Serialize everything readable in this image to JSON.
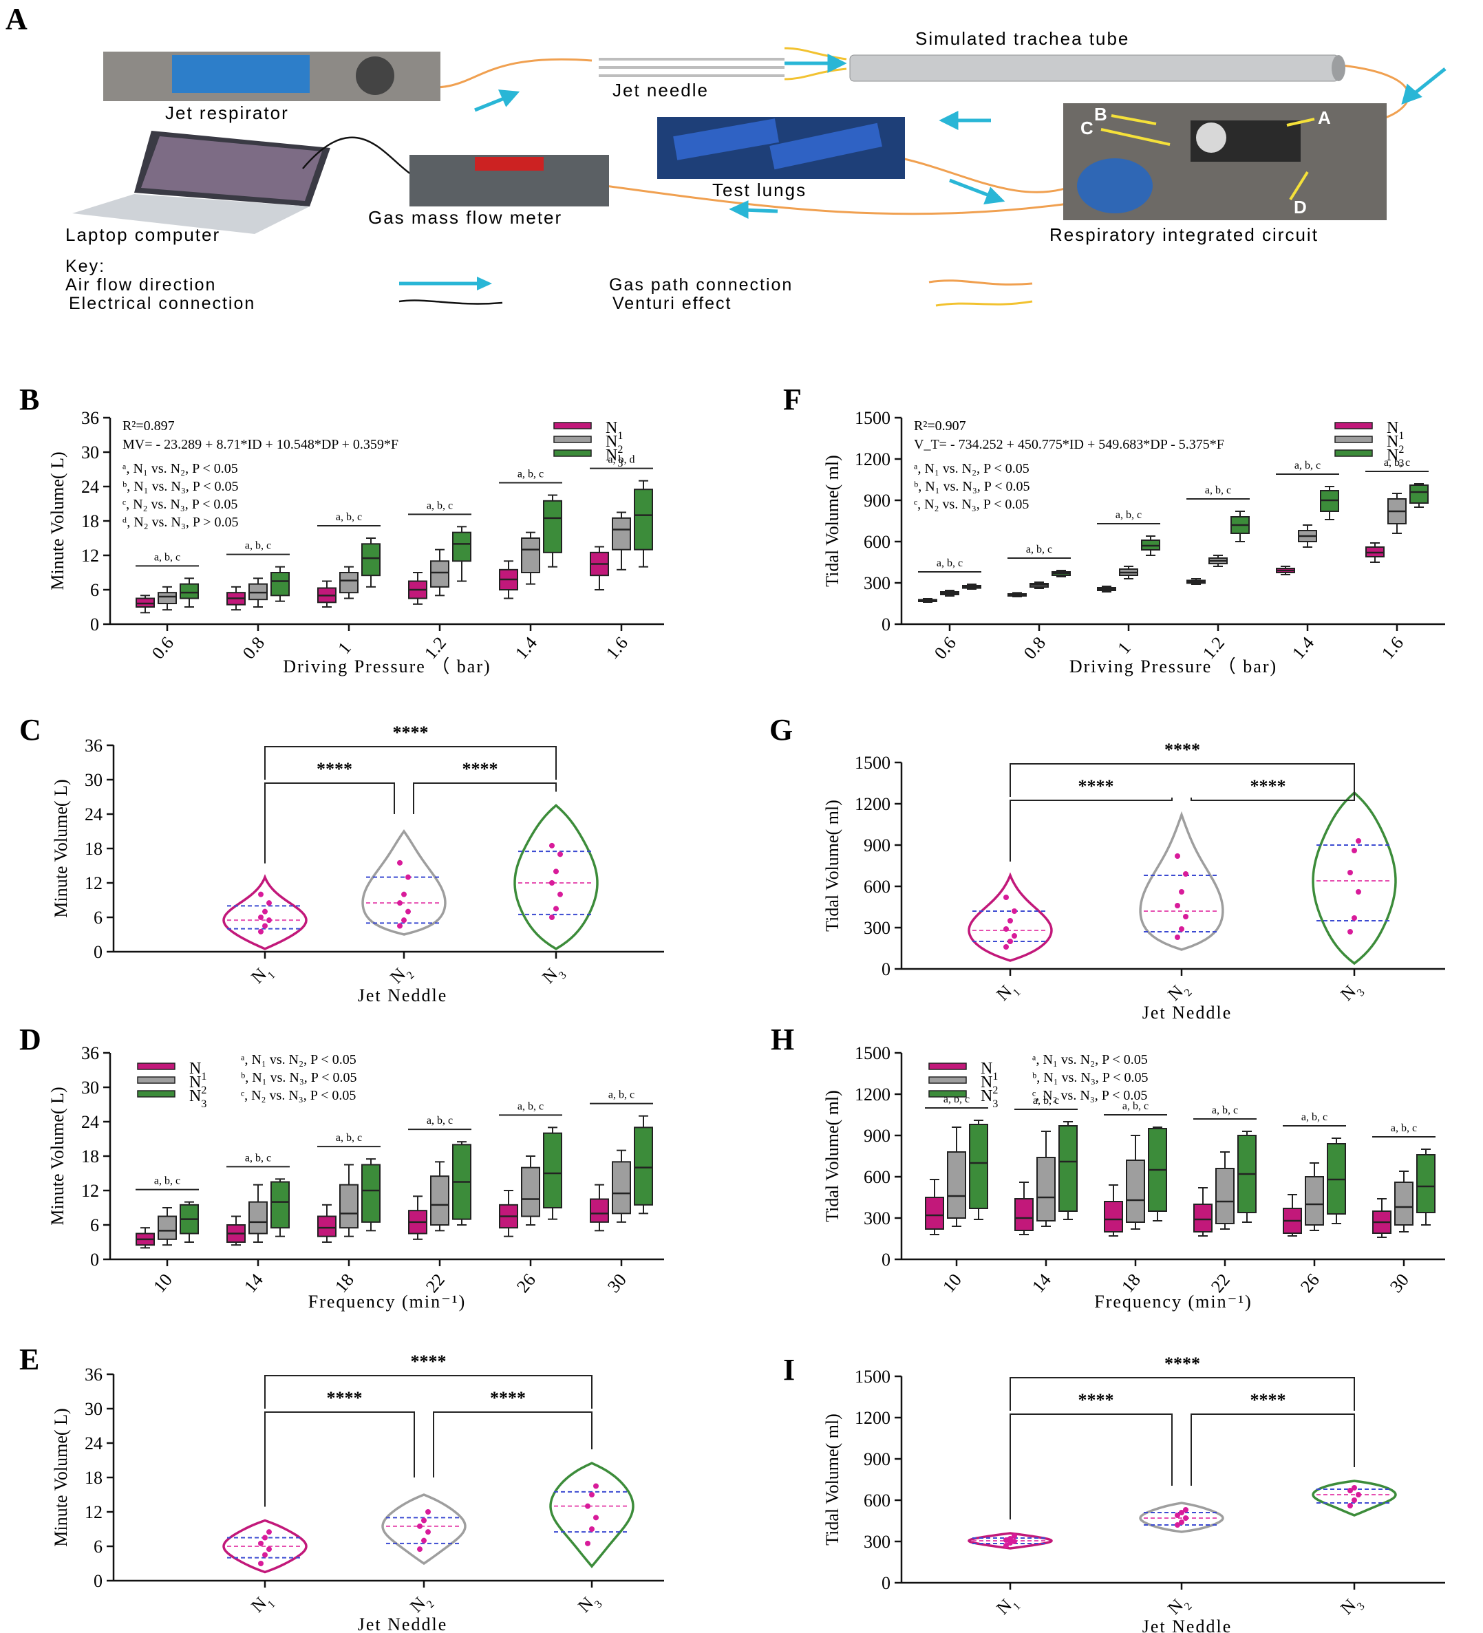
{
  "panel_labels": [
    "A",
    "B",
    "C",
    "D",
    "E",
    "F",
    "G",
    "H",
    "I"
  ],
  "schematic": {
    "jet_respirator": "Jet respirator",
    "jet_needle": "Jet needle",
    "trachea_tube": "Simulated trachea tube",
    "test_lungs": "Test lungs",
    "laptop": "Laptop computer",
    "flow_meter": "Gas mass flow meter",
    "circuit": "Respiratory integrated circuit",
    "photo_letters": [
      "B",
      "C",
      "A",
      "D"
    ],
    "key_title": "Key:",
    "key_air_flow": "Air flow direction",
    "key_electrical": "Electrical connection",
    "key_gas_path": "Gas path connection",
    "key_venturi": "Venturi effect",
    "colors": {
      "air_flow": "#29b6d6",
      "gas_path": "#f0a050",
      "venturi": "#f2c230",
      "electrical": "#111111"
    }
  },
  "series_names": [
    "N1",
    "N2",
    "N3"
  ],
  "series_colors": [
    "#c2187a",
    "#9e9e9e",
    "#3c8c3a"
  ],
  "chart_data": [
    {
      "id": "B",
      "type": "box",
      "ylabel": "Minute Volume( L)",
      "xlabel": "Driving Pressure （ bar)",
      "ylim": [
        0,
        36
      ],
      "yticks": [
        "0",
        "6",
        "12",
        "18",
        "24",
        "30",
        "36"
      ],
      "categories": [
        "0.6",
        "0.8",
        "1",
        "1.2",
        "1.4",
        "1.6"
      ],
      "eq1": "R²=0.897",
      "eq2": "MV= - 23.289 + 8.71*ID + 10.548*DP + 0.359*F",
      "notes": [
        "ᵃ, N₁ vs. N₂, P < 0.05",
        "ᵇ, N₁ vs. N₃, P < 0.05",
        "ᶜ, N₂ vs. N₃, P < 0.05",
        "ᵈ, N₂ vs. N₃, P > 0.05"
      ],
      "sig": [
        "a, b, c",
        "a, b, c",
        "a, b, c",
        "a, b, c",
        "a, b, c",
        "a, b, d"
      ],
      "series": [
        {
          "name": "N1",
          "boxes": [
            [
              2,
              3,
              3.6,
              4.5,
              5
            ],
            [
              2.5,
              3.4,
              4.5,
              5.5,
              6.5
            ],
            [
              3,
              3.8,
              5,
              6.3,
              7.5
            ],
            [
              3.5,
              4.5,
              6,
              7.5,
              9
            ],
            [
              4.5,
              6,
              7.8,
              9.5,
              11
            ],
            [
              6,
              8.5,
              10.5,
              12.5,
              13.5
            ]
          ]
        },
        {
          "name": "N2",
          "boxes": [
            [
              2.5,
              3.6,
              4.8,
              5.5,
              6.5
            ],
            [
              3,
              4.3,
              5.5,
              7,
              8
            ],
            [
              4.5,
              5.5,
              7.6,
              9,
              10
            ],
            [
              5,
              6.5,
              9,
              11,
              13
            ],
            [
              7,
              9,
              13,
              15,
              16
            ],
            [
              9.5,
              13,
              16.5,
              18.5,
              19.5
            ]
          ]
        },
        {
          "name": "N3",
          "boxes": [
            [
              3,
              4.5,
              5.5,
              7,
              8
            ],
            [
              4,
              5,
              7.5,
              9,
              10
            ],
            [
              6.5,
              8.5,
              11.5,
              14,
              15
            ],
            [
              7.5,
              11,
              14,
              16,
              17
            ],
            [
              10,
              12.5,
              18.5,
              21.5,
              22.5
            ],
            [
              10,
              13,
              19,
              23.5,
              25
            ]
          ]
        }
      ]
    },
    {
      "id": "F",
      "type": "box",
      "ylabel": "Tidal Volume( ml)",
      "xlabel": "Driving Pressure （ bar)",
      "ylim": [
        0,
        1500
      ],
      "yticks": [
        "0",
        "300",
        "600",
        "900",
        "1200",
        "1500"
      ],
      "categories": [
        "0.6",
        "0.8",
        "1",
        "1.2",
        "1.4",
        "1.6"
      ],
      "eq1": "R²=0.907",
      "eq2": "V_T= - 734.252 + 450.775*ID + 549.683*DP - 5.375*F",
      "notes": [
        "ᵃ, N₁ vs. N₂, P < 0.05",
        "ᵇ, N₁ vs. N₃, P < 0.05",
        "ᶜ, N₂ vs. N₃, P < 0.05"
      ],
      "sig": [
        "a, b, c",
        "a, b, c",
        "a, b, c",
        "a, b, c",
        "a, b, c",
        "a, b, c"
      ],
      "series": [
        {
          "name": "N1",
          "boxes": [
            [
              160,
              165,
              170,
              178,
              185
            ],
            [
              200,
              205,
              212,
              220,
              228
            ],
            [
              235,
              245,
              255,
              265,
              275
            ],
            [
              290,
              298,
              308,
              318,
              330
            ],
            [
              360,
              375,
              390,
              405,
              420
            ],
            [
              450,
              490,
              520,
              560,
              590
            ]
          ]
        },
        {
          "name": "N2",
          "boxes": [
            [
              205,
              215,
              225,
              235,
              245
            ],
            [
              260,
              270,
              285,
              295,
              305
            ],
            [
              330,
              355,
              375,
              400,
              420
            ],
            [
              420,
              440,
              460,
              480,
              500
            ],
            [
              560,
              600,
              640,
              680,
              720
            ],
            [
              660,
              730,
              820,
              910,
              950
            ]
          ]
        },
        {
          "name": "N3",
          "boxes": [
            [
              255,
              262,
              272,
              280,
              290
            ],
            [
              345,
              355,
              370,
              380,
              390
            ],
            [
              500,
              540,
              570,
              610,
              640
            ],
            [
              600,
              660,
              720,
              780,
              820
            ],
            [
              760,
              820,
              900,
              970,
              1000
            ],
            [
              850,
              880,
              960,
              1010,
              1020
            ]
          ]
        }
      ]
    },
    {
      "id": "C",
      "type": "violin",
      "ylabel": "Minute Volume( L)",
      "xlabel": "Jet Neddle",
      "ylim": [
        0,
        36
      ],
      "yticks": [
        "0",
        "6",
        "12",
        "18",
        "24",
        "30",
        "36"
      ],
      "categories": [
        "N1",
        "N2",
        "N3"
      ],
      "significance": [
        "****",
        "****",
        "****"
      ],
      "series": [
        {
          "name": "N1",
          "min": 0.5,
          "max": 13,
          "q1": 4,
          "median": 5.5,
          "q3": 8,
          "pts": [
            3.5,
            4.5,
            5.5,
            6,
            7,
            8.5,
            10
          ]
        },
        {
          "name": "N2",
          "min": 3,
          "max": 21,
          "q1": 5,
          "median": 8.5,
          "q3": 13,
          "pts": [
            4.5,
            5.5,
            7,
            8.5,
            10,
            13,
            15.5
          ]
        },
        {
          "name": "N3",
          "min": 0.5,
          "max": 25.5,
          "q1": 6.5,
          "median": 12,
          "q3": 17.5,
          "pts": [
            6,
            7.5,
            10,
            12,
            14,
            17,
            18.5
          ]
        }
      ]
    },
    {
      "id": "G",
      "type": "violin",
      "ylabel": "Tidal Volume( ml)",
      "xlabel": "Jet Neddle",
      "ylim": [
        0,
        1500
      ],
      "yticks": [
        "0",
        "300",
        "600",
        "900",
        "1200",
        "1500"
      ],
      "categories": [
        "N1",
        "N2",
        "N3"
      ],
      "significance": [
        "****",
        "****",
        "****"
      ],
      "series": [
        {
          "name": "N1",
          "min": 60,
          "max": 680,
          "q1": 200,
          "median": 280,
          "q3": 420,
          "pts": [
            160,
            200,
            240,
            290,
            350,
            420,
            520
          ]
        },
        {
          "name": "N2",
          "min": 140,
          "max": 1120,
          "q1": 270,
          "median": 420,
          "q3": 680,
          "pts": [
            230,
            290,
            380,
            460,
            560,
            690,
            820
          ]
        },
        {
          "name": "N3",
          "min": 40,
          "max": 1280,
          "q1": 350,
          "median": 640,
          "q3": 900,
          "pts": [
            270,
            370,
            560,
            700,
            860,
            930
          ]
        }
      ]
    },
    {
      "id": "D",
      "type": "box",
      "ylabel": "Minute Volume( L)",
      "xlabel": "Frequency (min⁻¹)",
      "ylim": [
        0,
        36
      ],
      "yticks": [
        "0",
        "6",
        "12",
        "18",
        "24",
        "30",
        "36"
      ],
      "categories": [
        "10",
        "14",
        "18",
        "22",
        "26",
        "30"
      ],
      "notes": [
        "ᵃ, N₁ vs. N₂, P < 0.05",
        "ᵇ, N₁ vs. N₃, P < 0.05",
        "ᶜ, N₂ vs. N₃, P < 0.05"
      ],
      "sig": [
        "a, b, c",
        "a, b, c",
        "a, b, c",
        "a, b, c",
        "a, b, c",
        "a, b, c"
      ],
      "series": [
        {
          "name": "N1",
          "boxes": [
            [
              2,
              2.5,
              3.5,
              4.5,
              5.5
            ],
            [
              2.5,
              3,
              4.5,
              6,
              7.5
            ],
            [
              3,
              4,
              5.5,
              7.5,
              9.5
            ],
            [
              3.5,
              4.5,
              6.5,
              8.5,
              11
            ],
            [
              4,
              5.5,
              7.5,
              9.5,
              12
            ],
            [
              5,
              6.5,
              8,
              10.5,
              13
            ]
          ]
        },
        {
          "name": "N2",
          "boxes": [
            [
              2.5,
              3.5,
              5,
              7.5,
              9
            ],
            [
              3,
              4.5,
              6.5,
              10,
              13
            ],
            [
              4,
              5.5,
              8,
              13,
              16.5
            ],
            [
              5,
              6,
              9.5,
              14.5,
              17
            ],
            [
              6,
              7.5,
              10.5,
              16,
              18
            ],
            [
              6.5,
              8,
              11.5,
              17,
              19
            ]
          ]
        },
        {
          "name": "N3",
          "boxes": [
            [
              3,
              4.5,
              7,
              9.5,
              10
            ],
            [
              4,
              5.5,
              10,
              13.5,
              14
            ],
            [
              5,
              6.5,
              12,
              16.5,
              17.5
            ],
            [
              6,
              7,
              13.5,
              20,
              20.5
            ],
            [
              7,
              9,
              15,
              22,
              23
            ],
            [
              8,
              9.5,
              16,
              23,
              25
            ]
          ]
        }
      ]
    },
    {
      "id": "H",
      "type": "box",
      "ylabel": "Tidal Volume( ml)",
      "xlabel": "Frequency (min⁻¹)",
      "ylim": [
        0,
        1500
      ],
      "yticks": [
        "0",
        "300",
        "600",
        "900",
        "1200",
        "1500"
      ],
      "categories": [
        "10",
        "14",
        "18",
        "22",
        "26",
        "30"
      ],
      "notes": [
        "ᵃ, N₁ vs. N₂, P < 0.05",
        "ᵇ, N₁ vs. N₃, P < 0.05",
        "ᶜ, N₂ vs. N₃, P < 0.05"
      ],
      "sig": [
        "a, b, c",
        "a, b, c",
        "a, b, c",
        "a, b, c",
        "a, b, c",
        "a, b, c"
      ],
      "series": [
        {
          "name": "N1",
          "boxes": [
            [
              180,
              220,
              320,
              450,
              580
            ],
            [
              180,
              210,
              300,
              440,
              560
            ],
            [
              170,
              200,
              290,
              420,
              540
            ],
            [
              170,
              200,
              290,
              400,
              520
            ],
            [
              170,
              190,
              280,
              370,
              470
            ],
            [
              160,
              190,
              270,
              350,
              440
            ]
          ]
        },
        {
          "name": "N2",
          "boxes": [
            [
              240,
              300,
              460,
              780,
              960
            ],
            [
              240,
              280,
              450,
              740,
              930
            ],
            [
              220,
              270,
              430,
              720,
              900
            ],
            [
              220,
              260,
              420,
              660,
              780
            ],
            [
              210,
              250,
              400,
              600,
              700
            ],
            [
              200,
              250,
              380,
              560,
              640
            ]
          ]
        },
        {
          "name": "N3",
          "boxes": [
            [
              290,
              370,
              700,
              980,
              1010
            ],
            [
              290,
              350,
              710,
              970,
              1000
            ],
            [
              280,
              350,
              650,
              950,
              960
            ],
            [
              270,
              340,
              620,
              900,
              930
            ],
            [
              260,
              330,
              580,
              840,
              880
            ],
            [
              250,
              340,
              530,
              760,
              800
            ]
          ]
        }
      ]
    },
    {
      "id": "E",
      "type": "violin",
      "ylabel": "Minute Volume( L)",
      "xlabel": "Jet Neddle",
      "ylim": [
        0,
        36
      ],
      "yticks": [
        "0",
        "6",
        "12",
        "18",
        "24",
        "30",
        "36"
      ],
      "categories": [
        "N1",
        "N2",
        "N3"
      ],
      "significance": [
        "****",
        "****",
        "****"
      ],
      "series": [
        {
          "name": "N1",
          "min": 1.5,
          "max": 10.5,
          "q1": 4,
          "median": 6,
          "q3": 7.5,
          "pts": [
            3,
            4.5,
            5.5,
            6.5,
            7.5,
            8.5
          ]
        },
        {
          "name": "N2",
          "min": 3,
          "max": 15,
          "q1": 6.5,
          "median": 9.5,
          "q3": 11,
          "pts": [
            5.5,
            7,
            8.5,
            9.5,
            10.5,
            12
          ]
        },
        {
          "name": "N3",
          "min": 2.5,
          "max": 20.5,
          "q1": 8.5,
          "median": 13,
          "q3": 15.5,
          "pts": [
            6.5,
            9,
            11,
            13,
            15,
            16.5
          ]
        }
      ]
    },
    {
      "id": "I",
      "type": "violin",
      "ylabel": "Tidal Volume( ml)",
      "xlabel": "Jet Neddle",
      "ylim": [
        0,
        1500
      ],
      "yticks": [
        "0",
        "300",
        "600",
        "900",
        "1200",
        "1500"
      ],
      "categories": [
        "N1",
        "N2",
        "N3"
      ],
      "significance": [
        "****",
        "****",
        "****"
      ],
      "series": [
        {
          "name": "N1",
          "min": 250,
          "max": 360,
          "q1": 285,
          "median": 305,
          "q3": 325,
          "pts": [
            270,
            290,
            300,
            310,
            320,
            340
          ]
        },
        {
          "name": "N2",
          "min": 370,
          "max": 580,
          "q1": 420,
          "median": 470,
          "q3": 510,
          "pts": [
            420,
            440,
            470,
            490,
            510,
            530
          ]
        },
        {
          "name": "N3",
          "min": 490,
          "max": 740,
          "q1": 580,
          "median": 640,
          "q3": 680,
          "pts": [
            560,
            600,
            640,
            670,
            690
          ]
        }
      ]
    }
  ]
}
